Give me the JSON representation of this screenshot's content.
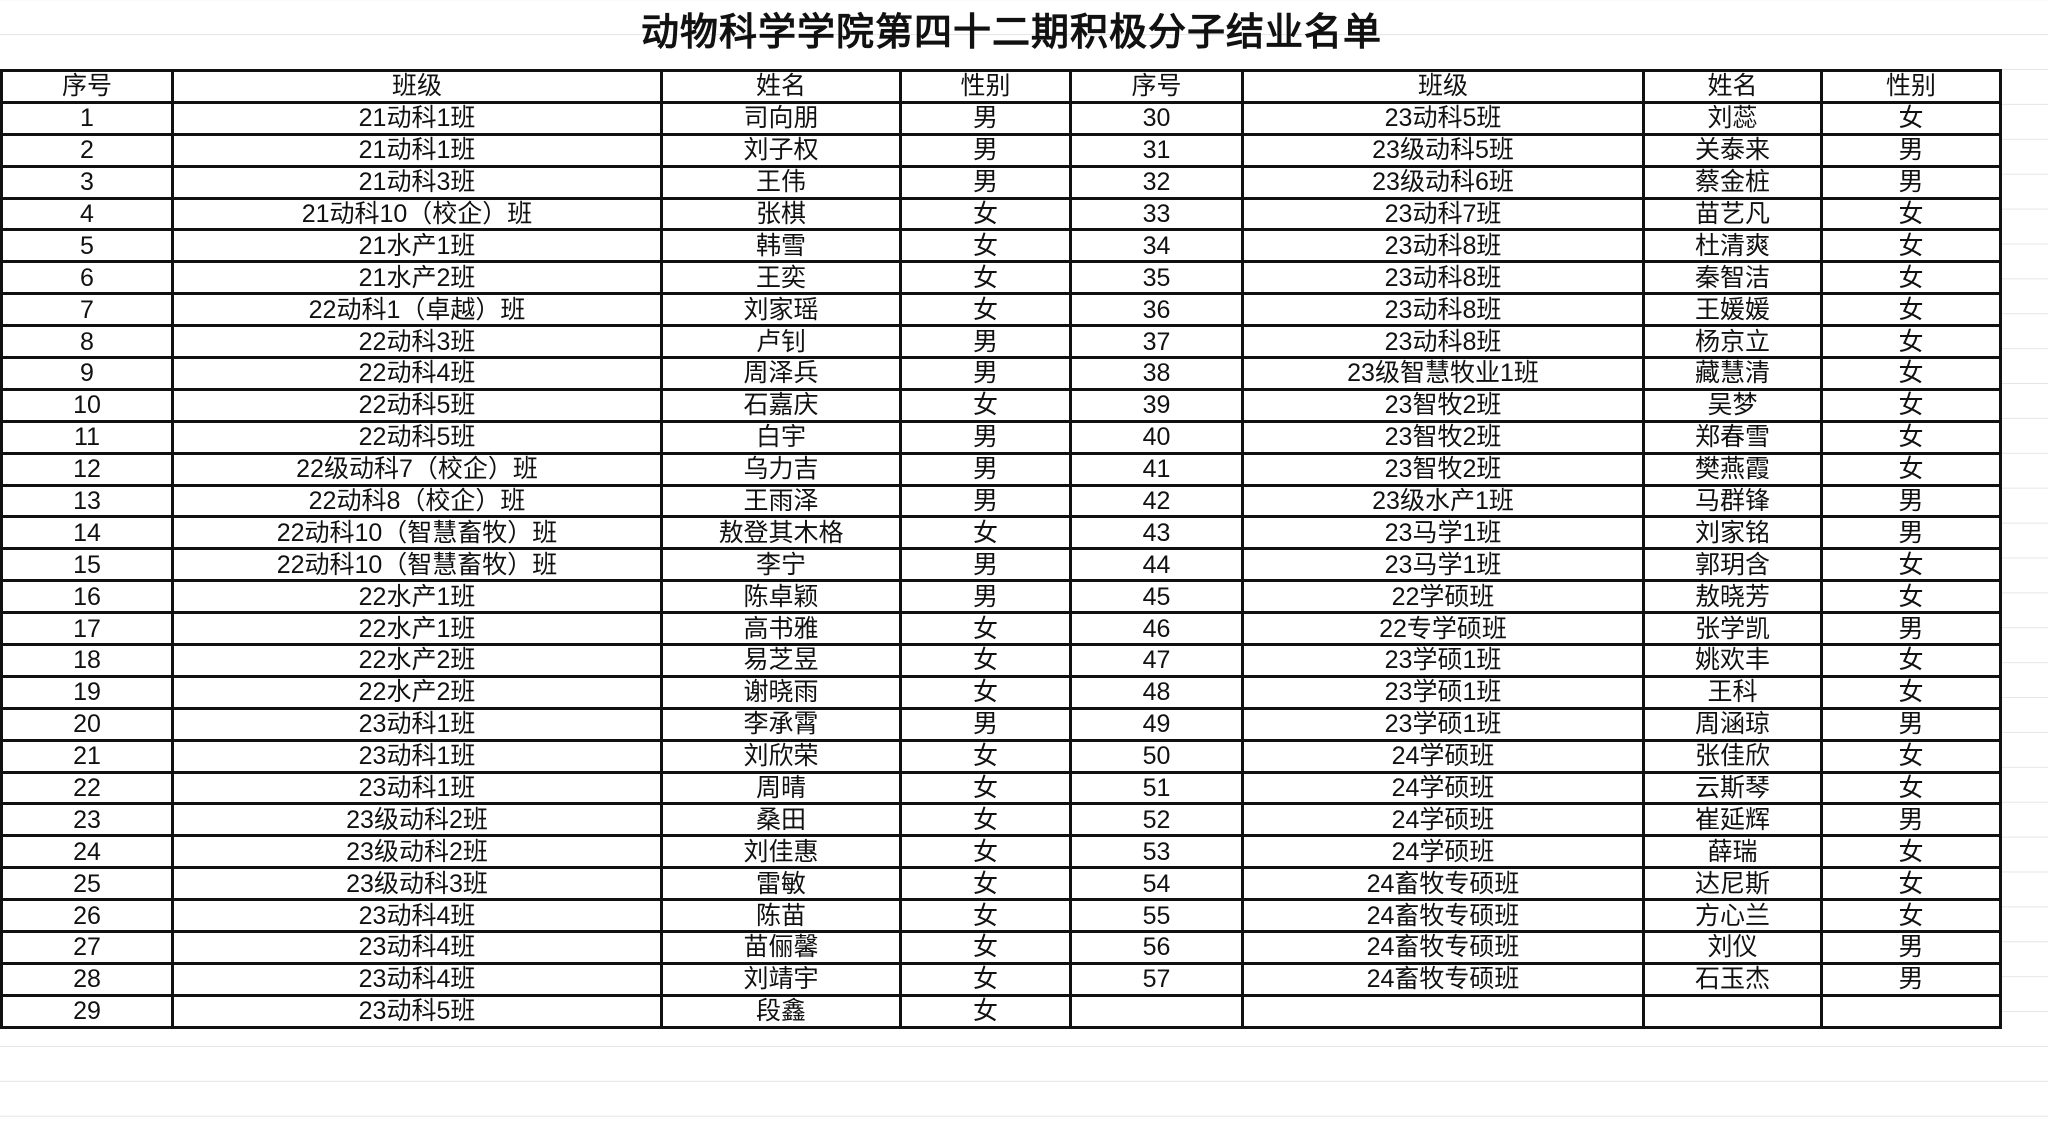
{
  "title": "动物科学学院第四十二期积极分子结业名单",
  "headers": [
    "序号",
    "班级",
    "姓名",
    "性别"
  ],
  "left": [
    {
      "no": "1",
      "class": "21动科1班",
      "name": "司向朋",
      "gender": "男"
    },
    {
      "no": "2",
      "class": "21动科1班",
      "name": "刘子权",
      "gender": "男"
    },
    {
      "no": "3",
      "class": "21动科3班",
      "name": "王伟",
      "gender": "男"
    },
    {
      "no": "4",
      "class": "21动科10（校企）班",
      "name": "张棋",
      "gender": "女"
    },
    {
      "no": "5",
      "class": "21水产1班",
      "name": "韩雪",
      "gender": "女"
    },
    {
      "no": "6",
      "class": "21水产2班",
      "name": "王奕",
      "gender": "女"
    },
    {
      "no": "7",
      "class": "22动科1（卓越）班",
      "name": "刘家瑶",
      "gender": "女"
    },
    {
      "no": "8",
      "class": "22动科3班",
      "name": "卢钊",
      "gender": "男"
    },
    {
      "no": "9",
      "class": "22动科4班",
      "name": "周泽兵",
      "gender": "男"
    },
    {
      "no": "10",
      "class": "22动科5班",
      "name": "石嘉庆",
      "gender": "女"
    },
    {
      "no": "11",
      "class": "22动科5班",
      "name": "白宇",
      "gender": "男"
    },
    {
      "no": "12",
      "class": "22级动科7（校企）班",
      "name": "乌力吉",
      "gender": "男"
    },
    {
      "no": "13",
      "class": "22动科8（校企）班",
      "name": "王雨泽",
      "gender": "男"
    },
    {
      "no": "14",
      "class": "22动科10（智慧畜牧）班",
      "name": "敖登其木格",
      "gender": "女"
    },
    {
      "no": "15",
      "class": "22动科10（智慧畜牧）班",
      "name": "李宁",
      "gender": "男"
    },
    {
      "no": "16",
      "class": "22水产1班",
      "name": "陈卓颖",
      "gender": "男"
    },
    {
      "no": "17",
      "class": "22水产1班",
      "name": "高书雅",
      "gender": "女"
    },
    {
      "no": "18",
      "class": "22水产2班",
      "name": "易芝昱",
      "gender": "女"
    },
    {
      "no": "19",
      "class": "22水产2班",
      "name": "谢晓雨",
      "gender": "女"
    },
    {
      "no": "20",
      "class": "23动科1班",
      "name": "李承霄",
      "gender": "男"
    },
    {
      "no": "21",
      "class": "23动科1班",
      "name": "刘欣荣",
      "gender": "女"
    },
    {
      "no": "22",
      "class": "23动科1班",
      "name": "周晴",
      "gender": "女"
    },
    {
      "no": "23",
      "class": "23级动科2班",
      "name": "桑田",
      "gender": "女"
    },
    {
      "no": "24",
      "class": "23级动科2班",
      "name": "刘佳惠",
      "gender": "女"
    },
    {
      "no": "25",
      "class": "23级动科3班",
      "name": "雷敏",
      "gender": "女"
    },
    {
      "no": "26",
      "class": "23动科4班",
      "name": "陈苗",
      "gender": "女"
    },
    {
      "no": "27",
      "class": "23动科4班",
      "name": "苗俪馨",
      "gender": "女"
    },
    {
      "no": "28",
      "class": "23动科4班",
      "name": "刘靖宇",
      "gender": "女"
    },
    {
      "no": "29",
      "class": "23动科5班",
      "name": "段鑫",
      "gender": "女"
    }
  ],
  "right": [
    {
      "no": "30",
      "class": "23动科5班",
      "name": "刘蕊",
      "gender": "女"
    },
    {
      "no": "31",
      "class": "23级动科5班",
      "name": "关泰来",
      "gender": "男"
    },
    {
      "no": "32",
      "class": "23级动科6班",
      "name": "蔡金桩",
      "gender": "男"
    },
    {
      "no": "33",
      "class": "23动科7班",
      "name": "苗艺凡",
      "gender": "女"
    },
    {
      "no": "34",
      "class": "23动科8班",
      "name": "杜清爽",
      "gender": "女"
    },
    {
      "no": "35",
      "class": "23动科8班",
      "name": "秦智洁",
      "gender": "女"
    },
    {
      "no": "36",
      "class": "23动科8班",
      "name": "王媛媛",
      "gender": "女"
    },
    {
      "no": "37",
      "class": "23动科8班",
      "name": "杨京立",
      "gender": "女"
    },
    {
      "no": "38",
      "class": "23级智慧牧业1班",
      "name": "藏慧清",
      "gender": "女"
    },
    {
      "no": "39",
      "class": "23智牧2班",
      "name": "吴梦",
      "gender": "女"
    },
    {
      "no": "40",
      "class": "23智牧2班",
      "name": "郑春雪",
      "gender": "女"
    },
    {
      "no": "41",
      "class": "23智牧2班",
      "name": "樊燕霞",
      "gender": "女"
    },
    {
      "no": "42",
      "class": "23级水产1班",
      "name": "马群锋",
      "gender": "男"
    },
    {
      "no": "43",
      "class": "23马学1班",
      "name": "刘家铭",
      "gender": "男"
    },
    {
      "no": "44",
      "class": "23马学1班",
      "name": "郭玥含",
      "gender": "女"
    },
    {
      "no": "45",
      "class": "22学硕班",
      "name": "敖晓芳",
      "gender": "女"
    },
    {
      "no": "46",
      "class": "22专学硕班",
      "name": "张学凯",
      "gender": "男"
    },
    {
      "no": "47",
      "class": "23学硕1班",
      "name": "姚欢丰",
      "gender": "女"
    },
    {
      "no": "48",
      "class": "23学硕1班",
      "name": "王科",
      "gender": "女"
    },
    {
      "no": "49",
      "class": "23学硕1班",
      "name": "周涵琼",
      "gender": "男"
    },
    {
      "no": "50",
      "class": "24学硕班",
      "name": "张佳欣",
      "gender": "女"
    },
    {
      "no": "51",
      "class": "24学硕班",
      "name": "云斯琴",
      "gender": "女"
    },
    {
      "no": "52",
      "class": "24学硕班",
      "name": "崔延辉",
      "gender": "男"
    },
    {
      "no": "53",
      "class": "24学硕班",
      "name": "薛瑞",
      "gender": "女"
    },
    {
      "no": "54",
      "class": "24畜牧专硕班",
      "name": "达尼斯",
      "gender": "女"
    },
    {
      "no": "55",
      "class": "24畜牧专硕班",
      "name": "方心兰",
      "gender": "女"
    },
    {
      "no": "56",
      "class": "24畜牧专硕班",
      "name": "刘仪",
      "gender": "男"
    },
    {
      "no": "57",
      "class": "24畜牧专硕班",
      "name": "石玉杰",
      "gender": "男"
    }
  ]
}
